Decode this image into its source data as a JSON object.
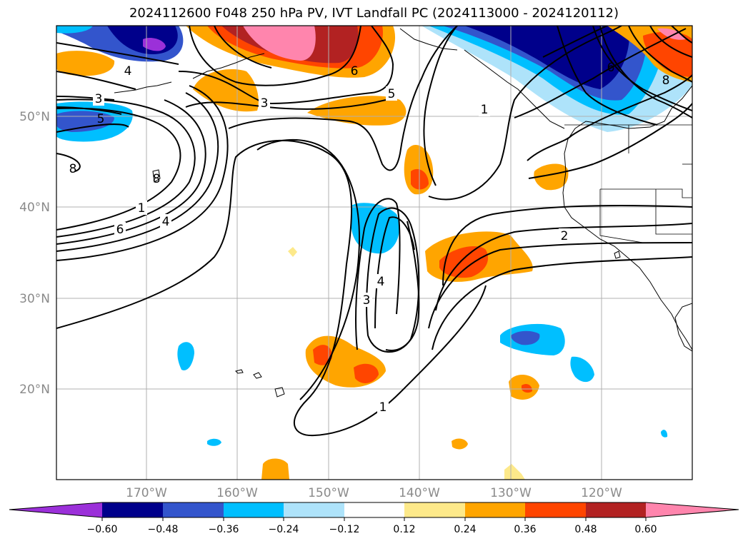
{
  "title": "2024112600 F048 250 hPa PV, IVT Landfall PC (2024113000 - 2024120112)",
  "lat_labels": [
    {
      "text": "50°N",
      "lat": 50
    },
    {
      "text": "40°N",
      "lat": 40
    },
    {
      "text": "30°N",
      "lat": 30
    },
    {
      "text": "20°N",
      "lat": 20
    }
  ],
  "lon_labels": [
    {
      "text": "170°W",
      "lon": -170
    },
    {
      "text": "160°W",
      "lon": -160
    },
    {
      "text": "150°W",
      "lon": -150
    },
    {
      "text": "140°W",
      "lon": -140
    },
    {
      "text": "130°W",
      "lon": -130
    },
    {
      "text": "120°W",
      "lon": -120
    }
  ],
  "map_extent": {
    "lon_min": -180,
    "lon_max": -110,
    "lat_min": 10,
    "lat_max": 60
  },
  "colorbar": {
    "colors": [
      "#9b30d9",
      "#00008b",
      "#3355cc",
      "#00bfff",
      "#aee3fa",
      "#ffffff",
      "#fde98a",
      "#ffa500",
      "#ff4500",
      "#b22222",
      "#ff85ad"
    ],
    "tick_labels": [
      "−0.60",
      "−0.48",
      "−0.36",
      "−0.24",
      "−0.12",
      "0.12",
      "0.24",
      "0.36",
      "0.48",
      "0.60"
    ]
  },
  "contour_labels": [
    "3",
    "4",
    "5",
    "6",
    "3",
    "6",
    "5",
    "8",
    "8",
    "1",
    "6",
    "4",
    "1",
    "2",
    "4",
    "3",
    "1",
    "8"
  ]
}
